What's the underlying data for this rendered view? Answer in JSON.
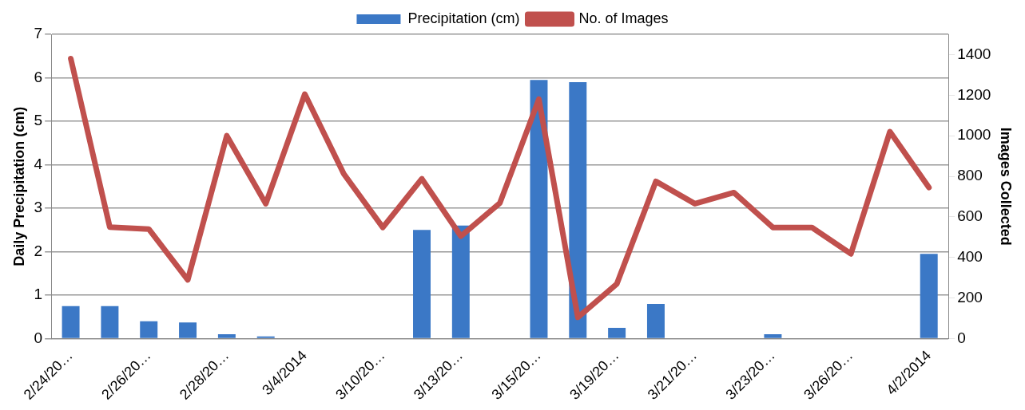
{
  "chart_data": {
    "type": "bar",
    "categories": [
      "2/24/20…",
      null,
      "2/26/20…",
      null,
      "2/28/20…",
      null,
      "3/4/2014",
      null,
      "3/10/20…",
      null,
      "3/13/20…",
      null,
      "3/15/20…",
      null,
      "3/19/20…",
      null,
      "3/21/20…",
      null,
      "3/23/20…",
      null,
      "3/26/20…",
      null,
      "4/2/2014"
    ],
    "series": [
      {
        "name": "Precipitation (cm)",
        "color": "#3b78c6",
        "values": [
          0.75,
          0.75,
          0.4,
          0.37,
          0.1,
          0.05,
          0,
          0,
          0,
          2.5,
          2.6,
          0,
          5.95,
          5.9,
          0.25,
          0.8,
          0,
          0,
          0.1,
          0,
          0,
          0,
          1.95
        ]
      },
      {
        "name": "No. of Images",
        "type": "line",
        "axis": "y2",
        "color": "#c0504d",
        "values": [
          1380,
          550,
          540,
          290,
          1000,
          665,
          1205,
          812,
          548,
          788,
          505,
          668,
          1180,
          105,
          270,
          775,
          665,
          720,
          548,
          548,
          418,
          1020,
          745
        ]
      }
    ],
    "ylabel": "Daily Precipitation (cm)",
    "y2label": "Images Collected",
    "ylim": [
      0,
      7
    ],
    "yticks": [
      0,
      1,
      2,
      3,
      4,
      5,
      6,
      7
    ],
    "y2lim": [
      0,
      1500
    ],
    "y2ticks": [
      0,
      200,
      400,
      600,
      800,
      1000,
      1200,
      1400
    ],
    "grid": "y",
    "legend": "top",
    "marker": "none"
  }
}
